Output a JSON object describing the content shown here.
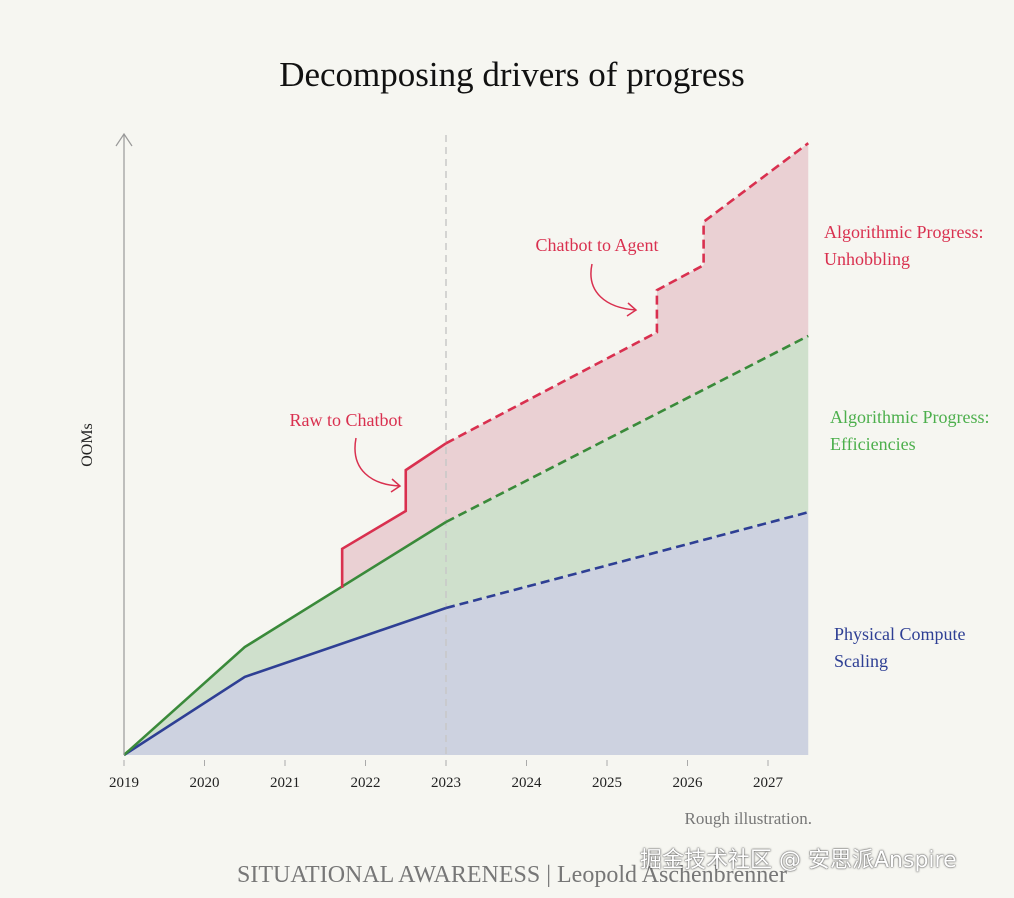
{
  "chart_data": {
    "type": "area",
    "title": "Decomposing drivers of progress",
    "ylabel": "OOMs",
    "xlabel": "",
    "xlim": [
      2019,
      2027.5
    ],
    "ylim": [
      0,
      10.2
    ],
    "x_ticks": [
      "2019",
      "2020",
      "2021",
      "2022",
      "2023",
      "2024",
      "2025",
      "2026",
      "2027"
    ],
    "projection_start": 2023,
    "series": [
      {
        "name": "Physical Compute Scaling",
        "label_lines": [
          "Physical Compute",
          "Scaling"
        ],
        "color": "#2e3f94",
        "fill": "#cdd2e0",
        "points": [
          [
            2019,
            0
          ],
          [
            2020.5,
            1.28
          ],
          [
            2023,
            2.41
          ],
          [
            2027.5,
            3.98
          ]
        ]
      },
      {
        "name": "Algorithmic Progress: Efficiencies",
        "label_lines": [
          "Algorithmic Progress:",
          "Efficiencies"
        ],
        "color": "#3a8a3a",
        "label_color": "#4caf4c",
        "fill": "#cfe0cc",
        "points": [
          [
            2019,
            0
          ],
          [
            2020.5,
            1.77
          ],
          [
            2023,
            3.82
          ],
          [
            2027.5,
            6.87
          ]
        ]
      },
      {
        "name": "Algorithmic Progress: Unhobbling",
        "label_lines": [
          "Algorithmic Progress:",
          "Unhobbling"
        ],
        "color": "#d9304f",
        "fill": "#ead0d3",
        "points": [
          [
            2021.71,
            2.74
          ],
          [
            2021.71,
            3.38
          ],
          [
            2022.5,
            4.0
          ],
          [
            2022.5,
            4.67
          ],
          [
            2023,
            5.11
          ],
          [
            2025.62,
            6.93
          ],
          [
            2025.62,
            7.62
          ],
          [
            2026.2,
            8.03
          ],
          [
            2026.2,
            8.74
          ],
          [
            2027.5,
            10.03
          ]
        ]
      }
    ],
    "annotations": [
      {
        "text": "Raw to Chatbot",
        "color": "#d9304f"
      },
      {
        "text": "Chatbot to Agent",
        "color": "#d9304f"
      }
    ],
    "note": "Rough illustration.",
    "footer": "SITUATIONAL AWARENESS | Leopold Aschenbrenner"
  },
  "watermark": "掘金技术社区 @ 安思派Anspire"
}
